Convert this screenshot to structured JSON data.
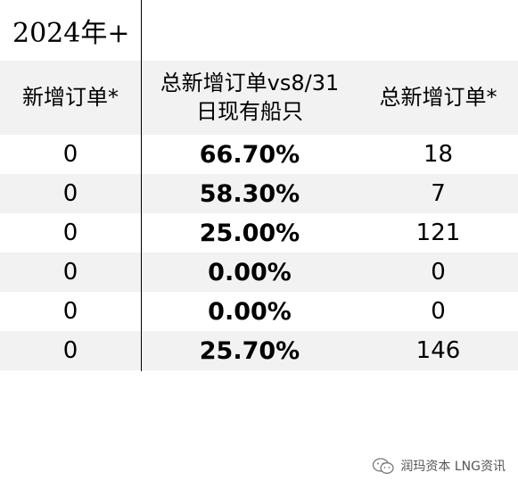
{
  "title": "2024年+",
  "headers": {
    "col1": "新增订单*",
    "col2_line1": "总新增订单vs8/31",
    "col2_line2": "日现有船只",
    "col3": "总新增订单*"
  },
  "rows": [
    {
      "c1": "0",
      "c2": "66.70%",
      "c3": "18"
    },
    {
      "c1": "0",
      "c2": "58.30%",
      "c3": "7"
    },
    {
      "c1": "0",
      "c2": "25.00%",
      "c3": "121"
    },
    {
      "c1": "0",
      "c2": "0.00%",
      "c3": "0"
    },
    {
      "c1": "0",
      "c2": "0.00%",
      "c3": "0"
    },
    {
      "c1": "0",
      "c2": "25.70%",
      "c3": "146"
    }
  ],
  "watermark": {
    "text": "润玛资本 LNG资讯",
    "icon": "wechat-icon"
  },
  "colors": {
    "header_bg": "#f2f2f2",
    "stripe_bg": "#f2f2f2",
    "text": "#000000"
  }
}
